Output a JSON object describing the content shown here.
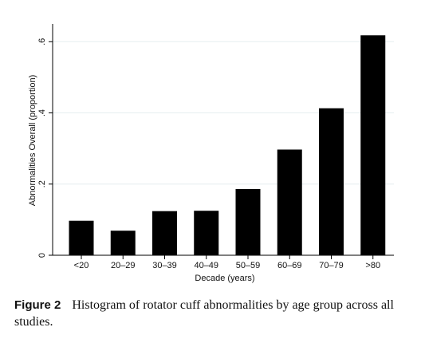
{
  "chart_data": {
    "type": "bar",
    "categories": [
      "<20",
      "20–29",
      "30–39",
      "40–49",
      "50–59",
      "60–69",
      "70–79",
      ">80"
    ],
    "values": [
      0.097,
      0.069,
      0.124,
      0.125,
      0.186,
      0.297,
      0.413,
      0.618
    ],
    "xlabel": "Decade (years)",
    "ylabel": "Abnormalities Overall (proportion)",
    "ylim": [
      0,
      0.65
    ],
    "yticks": [
      {
        "value": 0,
        "label": "0"
      },
      {
        "value": 0.2,
        "label": ".2"
      },
      {
        "value": 0.4,
        "label": ".4"
      },
      {
        "value": 0.6,
        "label": ".6"
      }
    ],
    "grid": true,
    "bar_color": "#000000"
  },
  "caption": {
    "figure_label": "Figure 2",
    "text": "Histogram of rotator cuff abnormalities by age group across all studies."
  }
}
